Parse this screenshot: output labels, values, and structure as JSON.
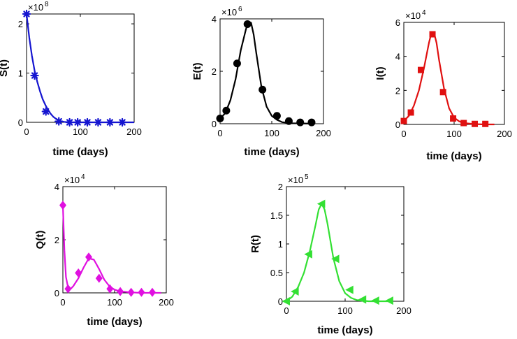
{
  "chart_data": [
    {
      "type": "line",
      "title": "",
      "xlabel": "time (days)",
      "ylabel": "S(t)",
      "multiplier_base": "×10",
      "multiplier_exp": "8",
      "color": "#1515d0",
      "marker": "asterisk",
      "xlim": [
        0,
        200
      ],
      "ylim": [
        0,
        2.2
      ],
      "xticks": [
        "0",
        "100",
        "200"
      ],
      "yticks": [
        "0",
        "1",
        "2"
      ],
      "yticks_values": [
        0,
        1,
        2
      ],
      "xticks_values": [
        0,
        100,
        200
      ],
      "curve_x": [
        0,
        5,
        10,
        15,
        20,
        25,
        30,
        35,
        40,
        45,
        50,
        55,
        60,
        65,
        70,
        80,
        100,
        140,
        200
      ],
      "curve_y": [
        2.2,
        1.72,
        1.35,
        1.05,
        0.82,
        0.63,
        0.47,
        0.35,
        0.25,
        0.17,
        0.11,
        0.07,
        0.04,
        0.02,
        0.01,
        0.0,
        0.0,
        0.0,
        0.0
      ],
      "markers_x": [
        0,
        15,
        36,
        60,
        80,
        95,
        113,
        133,
        155,
        178
      ],
      "markers_y": [
        2.2,
        0.95,
        0.22,
        0.02,
        0.0,
        0.0,
        0.0,
        0.0,
        0.0,
        0.0
      ]
    },
    {
      "type": "line",
      "title": "",
      "xlabel": "time (days)",
      "ylabel": "E(t)",
      "multiplier_base": "×10",
      "multiplier_exp": "6",
      "color": "#000000",
      "marker": "circle",
      "xlim": [
        0,
        200
      ],
      "ylim": [
        0,
        4
      ],
      "xticks": [
        "0",
        "100",
        "200"
      ],
      "yticks": [
        "0",
        "2",
        "4"
      ],
      "yticks_values": [
        0,
        2,
        4
      ],
      "xticks_values": [
        0,
        100,
        200
      ],
      "curve_x": [
        0,
        10,
        20,
        30,
        40,
        50,
        55,
        60,
        65,
        70,
        80,
        90,
        100,
        110,
        120,
        140,
        160,
        180
      ],
      "curve_y": [
        0.2,
        0.4,
        0.9,
        1.7,
        2.8,
        3.6,
        3.9,
        3.85,
        3.4,
        2.7,
        1.4,
        0.65,
        0.3,
        0.15,
        0.06,
        0.02,
        0.01,
        0.0
      ],
      "markers_x": [
        0,
        12,
        33,
        53,
        82,
        110,
        133,
        155,
        177
      ],
      "markers_y": [
        0.2,
        0.5,
        2.3,
        3.8,
        1.3,
        0.3,
        0.1,
        0.05,
        0.05
      ]
    },
    {
      "type": "line",
      "title": "",
      "xlabel": "time (days)",
      "ylabel": "I(t)",
      "multiplier_base": "×10",
      "multiplier_exp": "4",
      "color": "#e01010",
      "marker": "square",
      "xlim": [
        0,
        200
      ],
      "ylim": [
        0,
        6
      ],
      "xticks": [
        "0",
        "100",
        "200"
      ],
      "yticks": [
        "0",
        "2",
        "4",
        "6"
      ],
      "yticks_values": [
        0,
        2,
        4,
        6
      ],
      "xticks_values": [
        0,
        100,
        200
      ],
      "curve_x": [
        0,
        10,
        20,
        30,
        40,
        50,
        55,
        60,
        65,
        70,
        80,
        90,
        100,
        110,
        120,
        140,
        160,
        180
      ],
      "curve_y": [
        0.2,
        0.5,
        1.1,
        2.0,
        3.3,
        4.8,
        5.4,
        5.4,
        4.8,
        3.8,
        2.1,
        0.95,
        0.4,
        0.18,
        0.08,
        0.02,
        0.0,
        0.0
      ],
      "markers_x": [
        0,
        14,
        34,
        57,
        78,
        98,
        119,
        141,
        162
      ],
      "markers_y": [
        0.2,
        0.7,
        3.2,
        5.3,
        1.9,
        0.35,
        0.08,
        0.03,
        0.03
      ]
    },
    {
      "type": "line",
      "title": "",
      "xlabel": "time (days)",
      "ylabel": "Q(t)",
      "multiplier_base": "×10",
      "multiplier_exp": "4",
      "color": "#e010e0",
      "marker": "diamond",
      "xlim": [
        0,
        200
      ],
      "ylim": [
        0,
        4
      ],
      "xticks": [
        "0",
        "100",
        "200"
      ],
      "yticks": [
        "0",
        "2",
        "4"
      ],
      "yticks_values": [
        0,
        2,
        4
      ],
      "xticks_values": [
        0,
        100,
        200
      ],
      "curve_x": [
        0,
        3,
        6,
        10,
        15,
        20,
        30,
        40,
        50,
        60,
        70,
        80,
        90,
        100,
        110,
        130,
        150,
        170,
        190
      ],
      "curve_y": [
        3.3,
        1.6,
        0.6,
        0.2,
        0.15,
        0.25,
        0.55,
        0.95,
        1.3,
        1.25,
        0.9,
        0.5,
        0.25,
        0.12,
        0.06,
        0.02,
        0.0,
        0.0,
        0.0
      ],
      "markers_x": [
        0,
        10,
        30,
        50,
        70,
        91,
        111,
        132,
        152,
        173
      ],
      "markers_y": [
        3.3,
        0.15,
        0.75,
        1.35,
        0.55,
        0.15,
        0.05,
        0.02,
        0.02,
        0.02
      ]
    },
    {
      "type": "line",
      "title": "",
      "xlabel": "time (days)",
      "ylabel": "R(t)",
      "multiplier_base": "×10",
      "multiplier_exp": "5",
      "color": "#33e033",
      "marker": "triangle-left",
      "xlim": [
        0,
        200
      ],
      "ylim": [
        0,
        2
      ],
      "xticks": [
        "0",
        "100",
        "200"
      ],
      "yticks": [
        "0",
        "0.5",
        "1",
        "1.5",
        "2"
      ],
      "yticks_values": [
        0,
        0.5,
        1,
        1.5,
        2
      ],
      "xticks_values": [
        0,
        100,
        200
      ],
      "curve_x": [
        0,
        10,
        20,
        30,
        40,
        50,
        55,
        60,
        65,
        70,
        80,
        90,
        100,
        110,
        120,
        140,
        160,
        180
      ],
      "curve_y": [
        0.0,
        0.08,
        0.25,
        0.5,
        0.88,
        1.35,
        1.6,
        1.7,
        1.6,
        1.35,
        0.75,
        0.35,
        0.14,
        0.06,
        0.02,
        0.0,
        0.0,
        0.0
      ],
      "markers_x": [
        0,
        15,
        38,
        60,
        84,
        108,
        130,
        152,
        176
      ],
      "markers_y": [
        0.0,
        0.17,
        0.82,
        1.7,
        0.74,
        0.2,
        0.03,
        0.01,
        0.01
      ]
    }
  ]
}
